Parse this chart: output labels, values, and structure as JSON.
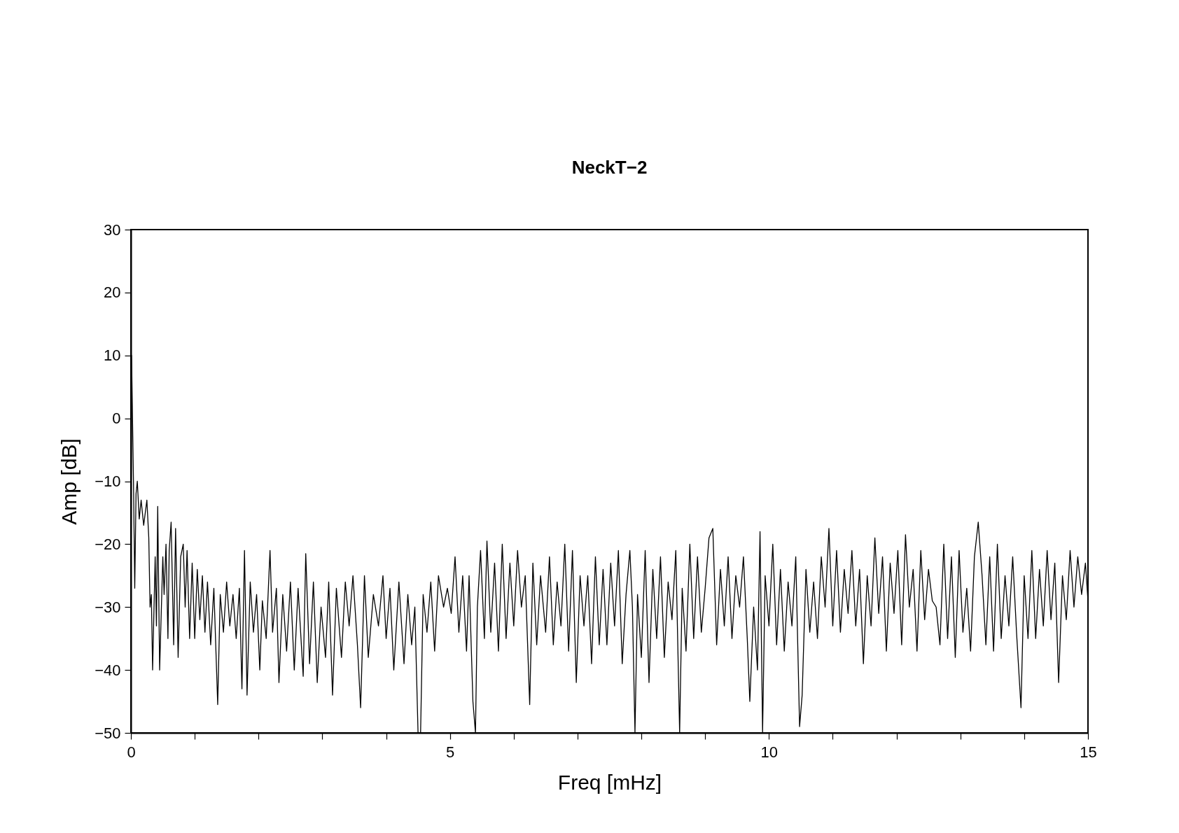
{
  "chart_data": {
    "type": "line",
    "title": "NeckT−2",
    "xlabel": "Freq [mHz]",
    "ylabel": "Amp [dB]",
    "color": "#000000",
    "xlim": [
      0,
      15
    ],
    "ylim": [
      -50,
      30
    ],
    "xticks": [
      0,
      {
        "value": 1,
        "label": null
      },
      {
        "value": 2,
        "label": null
      },
      {
        "value": 3,
        "label": null
      },
      {
        "value": 4,
        "label": null
      },
      5,
      {
        "value": 6,
        "label": null
      },
      {
        "value": 7,
        "label": null
      },
      {
        "value": 8,
        "label": null
      },
      {
        "value": 9,
        "label": null
      },
      10,
      {
        "value": 11,
        "label": null
      },
      {
        "value": 12,
        "label": null
      },
      {
        "value": 13,
        "label": null
      },
      {
        "value": 14,
        "label": null
      },
      15
    ],
    "yticks": [
      {
        "value": -50,
        "label": "−50"
      },
      {
        "value": -40,
        "label": "−40"
      },
      {
        "value": -30,
        "label": "−30"
      },
      {
        "value": -20,
        "label": "−20"
      },
      {
        "value": -10,
        "label": "−10"
      },
      0,
      10,
      20,
      30
    ],
    "x": [
      0,
      0.01,
      0.04,
      0.06,
      0.08,
      0.1,
      0.13,
      0.16,
      0.2,
      0.25,
      0.28,
      0.3,
      0.32,
      0.34,
      0.38,
      0.4,
      0.42,
      0.45,
      0.5,
      0.52,
      0.55,
      0.58,
      0.6,
      0.63,
      0.67,
      0.7,
      0.74,
      0.78,
      0.82,
      0.85,
      0.88,
      0.92,
      0.96,
      1.0,
      1.04,
      1.08,
      1.12,
      1.16,
      1.2,
      1.25,
      1.3,
      1.36,
      1.4,
      1.45,
      1.5,
      1.55,
      1.6,
      1.65,
      1.7,
      1.74,
      1.78,
      1.82,
      1.87,
      1.92,
      1.97,
      2.02,
      2.06,
      2.12,
      2.18,
      2.22,
      2.28,
      2.32,
      2.38,
      2.44,
      2.5,
      2.56,
      2.62,
      2.7,
      2.74,
      2.8,
      2.86,
      2.92,
      2.98,
      3.05,
      3.1,
      3.16,
      3.22,
      3.3,
      3.36,
      3.42,
      3.48,
      3.55,
      3.6,
      3.66,
      3.72,
      3.8,
      3.88,
      3.95,
      4.0,
      4.06,
      4.12,
      4.2,
      4.28,
      4.34,
      4.4,
      4.45,
      4.5,
      4.54,
      4.58,
      4.64,
      4.7,
      4.76,
      4.82,
      4.9,
      4.96,
      5.02,
      5.08,
      5.14,
      5.2,
      5.26,
      5.3,
      5.36,
      5.4,
      5.43,
      5.48,
      5.54,
      5.58,
      5.64,
      5.7,
      5.76,
      5.82,
      5.88,
      5.94,
      6.0,
      6.06,
      6.12,
      6.18,
      6.25,
      6.3,
      6.36,
      6.42,
      6.5,
      6.56,
      6.62,
      6.68,
      6.74,
      6.8,
      6.86,
      6.92,
      6.98,
      7.04,
      7.1,
      7.16,
      7.22,
      7.28,
      7.34,
      7.4,
      7.46,
      7.52,
      7.58,
      7.64,
      7.7,
      7.76,
      7.82,
      7.86,
      7.9,
      7.94,
      8.0,
      8.06,
      8.12,
      8.18,
      8.24,
      8.3,
      8.36,
      8.42,
      8.48,
      8.54,
      8.6,
      8.64,
      8.7,
      8.76,
      8.82,
      8.88,
      8.94,
      9.0,
      9.06,
      9.12,
      9.18,
      9.24,
      9.3,
      9.36,
      9.42,
      9.48,
      9.54,
      9.6,
      9.66,
      9.7,
      9.76,
      9.82,
      9.86,
      9.9,
      9.94,
      10.0,
      10.06,
      10.12,
      10.18,
      10.24,
      10.3,
      10.36,
      10.42,
      10.48,
      10.52,
      10.58,
      10.64,
      10.7,
      10.76,
      10.82,
      10.88,
      10.94,
      11.0,
      11.06,
      11.12,
      11.18,
      11.24,
      11.3,
      11.36,
      11.42,
      11.48,
      11.54,
      11.6,
      11.66,
      11.72,
      11.78,
      11.84,
      11.9,
      11.96,
      12.02,
      12.08,
      12.14,
      12.2,
      12.26,
      12.32,
      12.38,
      12.44,
      12.5,
      12.56,
      12.62,
      12.68,
      12.74,
      12.8,
      12.86,
      12.92,
      12.98,
      13.04,
      13.1,
      13.16,
      13.22,
      13.28,
      13.34,
      13.4,
      13.46,
      13.52,
      13.58,
      13.64,
      13.7,
      13.76,
      13.82,
      13.88,
      13.95,
      14.0,
      14.06,
      14.12,
      14.18,
      14.24,
      14.3,
      14.36,
      14.42,
      14.48,
      14.54,
      14.6,
      14.66,
      14.72,
      14.78,
      14.84,
      14.9,
      14.96,
      15.0
    ],
    "values": [
      -27,
      10,
      -10,
      -27,
      -12,
      -10,
      -16,
      -13,
      -17,
      -13,
      -19,
      -30,
      -28,
      -40,
      -22,
      -33,
      -14,
      -40,
      -22,
      -28,
      -20,
      -35,
      -21,
      -16.5,
      -36,
      -17.5,
      -38,
      -22,
      -20,
      -30,
      -21,
      -35,
      -23,
      -35,
      -24,
      -32,
      -25,
      -34,
      -26,
      -36,
      -27,
      -45.5,
      -28,
      -34,
      -26,
      -33,
      -28,
      -35,
      -27,
      -43,
      -21,
      -44,
      -26,
      -34,
      -28,
      -40,
      -29,
      -35,
      -21,
      -34,
      -27,
      -42,
      -28,
      -37,
      -26,
      -40,
      -27,
      -41,
      -21.5,
      -39,
      -26,
      -42,
      -30,
      -38,
      -26,
      -44,
      -27,
      -38,
      -26,
      -33,
      -25,
      -36,
      -46,
      -25,
      -38,
      -28,
      -33,
      -25,
      -35,
      -27,
      -40,
      -26,
      -39,
      -28,
      -36,
      -30,
      -50,
      -50,
      -28,
      -34,
      -26,
      -37,
      -25,
      -30,
      -27,
      -31,
      -22,
      -34,
      -25,
      -37,
      -25,
      -45,
      -50,
      -30,
      -21,
      -35,
      -19.5,
      -34,
      -23,
      -37,
      -20,
      -35,
      -23,
      -33,
      -21,
      -30,
      -25,
      -45.5,
      -23,
      -36,
      -25,
      -34,
      -22,
      -36,
      -26,
      -33,
      -20,
      -37,
      -21,
      -42,
      -25,
      -33,
      -25,
      -39,
      -22,
      -36,
      -24,
      -36,
      -23,
      -33,
      -21,
      -39,
      -28,
      -21,
      -30,
      -50,
      -28,
      -38,
      -21,
      -42,
      -24,
      -35,
      -22,
      -38,
      -26,
      -32,
      -21,
      -50,
      -27,
      -37,
      -20,
      -35,
      -22,
      -34,
      -27,
      -19,
      -17.5,
      -36,
      -24,
      -33,
      -22,
      -35,
      -25,
      -30,
      -22,
      -35,
      -45,
      -30,
      -40,
      -18,
      -50,
      -25,
      -33,
      -20,
      -36,
      -24,
      -37,
      -26,
      -33,
      -22,
      -49,
      -44,
      -24,
      -34,
      -26,
      -35,
      -22,
      -30,
      -17.5,
      -33,
      -21,
      -34,
      -24,
      -31,
      -21,
      -33,
      -24,
      -39,
      -25,
      -33,
      -19,
      -31,
      -22,
      -37,
      -23,
      -31,
      -21,
      -36,
      -18.5,
      -30,
      -24,
      -37,
      -21,
      -32,
      -24,
      -29,
      -30,
      -36,
      -20,
      -35,
      -22,
      -38,
      -21,
      -34,
      -27,
      -37,
      -22,
      -16.5,
      -25,
      -36,
      -22,
      -37,
      -20,
      -35,
      -25,
      -33,
      -22,
      -34,
      -46,
      -25,
      -35,
      -21,
      -35,
      -24,
      -33,
      -21,
      -32,
      -23,
      -42,
      -25,
      -32,
      -21,
      -30,
      -22,
      -28,
      -23,
      -29
    ]
  }
}
